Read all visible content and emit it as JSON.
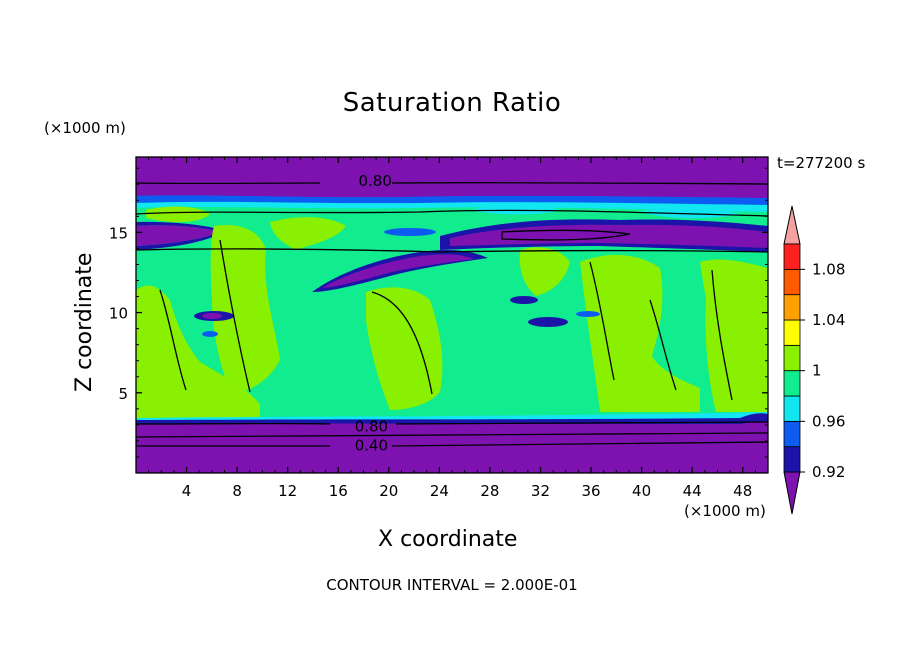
{
  "chart_data": {
    "type": "heatmap",
    "title": "Saturation Ratio",
    "xlabel": "X coordinate",
    "ylabel": "Z coordinate",
    "x_unit": "(×1000 m)",
    "y_unit": "(×1000 m)",
    "time_label": "t=277200 s",
    "footer": "CONTOUR INTERVAL = 2.000E-01",
    "xlim": [
      0,
      50
    ],
    "ylim": [
      0,
      19.7
    ],
    "x_ticks": [
      "4",
      "8",
      "12",
      "16",
      "20",
      "24",
      "28",
      "32",
      "36",
      "40",
      "44",
      "48"
    ],
    "y_ticks": [
      "5",
      "10",
      "15"
    ],
    "contour_labels": [
      {
        "text": "0.80",
        "x": 17.5,
        "z": 18.2
      },
      {
        "text": "0.80",
        "x": 17.2,
        "z": 2.9
      },
      {
        "text": "0.40",
        "x": 17.2,
        "z": 1.7
      }
    ],
    "colorbar": {
      "labels": [
        "1.08",
        "1.04",
        "1",
        "0.96",
        "0.92"
      ],
      "levels": [
        0.92,
        0.94,
        0.96,
        0.98,
        1.0,
        1.02,
        1.04,
        1.06,
        1.08
      ],
      "colors": [
        "#7d12b0",
        "#1c14a8",
        "#0d5cf2",
        "#12e6f0",
        "#10ec8e",
        "#88f000",
        "#ffff00",
        "#ffa000",
        "#ff5a00",
        "#ff2020",
        "#f4a0a0"
      ]
    },
    "bands": [
      {
        "name": "top-dry-layer",
        "z_min": 17.3,
        "z_max": 19.7,
        "value_class": "below 0.92"
      },
      {
        "name": "upper-moist-layer",
        "z_min": 13.8,
        "z_max": 16.6,
        "value_class": "0.96-1.00"
      },
      {
        "name": "mid-cloud-layer",
        "z_min": 3.4,
        "z_max": 13.8,
        "value_class": "0.98-1.02"
      },
      {
        "name": "bottom-dry-layer",
        "z_min": 0,
        "z_max": 3.4,
        "value_class": "below 0.92"
      }
    ]
  }
}
